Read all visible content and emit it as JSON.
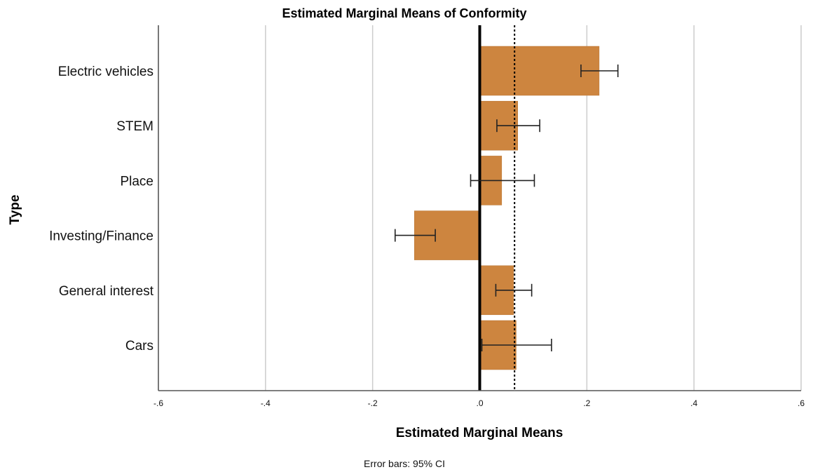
{
  "chart_data": {
    "type": "bar",
    "orientation": "horizontal",
    "title": "Estimated Marginal Means of Conformity",
    "xlabel": "Estimated Marginal Means",
    "ylabel": "Type",
    "footnote": "Error bars: 95% CI",
    "xlim": [
      -0.6,
      0.6
    ],
    "x_ticks": [
      -0.6,
      -0.4,
      -0.2,
      0.0,
      0.2,
      0.4,
      0.6
    ],
    "x_tick_labels": [
      "-.6",
      "-.4",
      "-.2",
      ".0",
      ".2",
      ".4",
      ".6"
    ],
    "grid": true,
    "reference_lines": [
      {
        "value": 0.0,
        "style": "solid"
      },
      {
        "value": 0.065,
        "style": "dotted"
      }
    ],
    "categories": [
      "Electric vehicles",
      "STEM",
      "Place",
      "Investing/Finance",
      "General interest",
      "Cars"
    ],
    "values": [
      0.223,
      0.071,
      0.041,
      -0.122,
      0.063,
      0.068
    ],
    "ci_lower": [
      0.189,
      0.032,
      -0.017,
      -0.158,
      0.03,
      0.004
    ],
    "ci_upper": [
      0.258,
      0.112,
      0.102,
      -0.083,
      0.097,
      0.134
    ],
    "colors": {
      "bar": "#CD853F",
      "bar_stroke": "#b87533",
      "grid": "#cccccc",
      "error_bar": "#222222"
    }
  }
}
